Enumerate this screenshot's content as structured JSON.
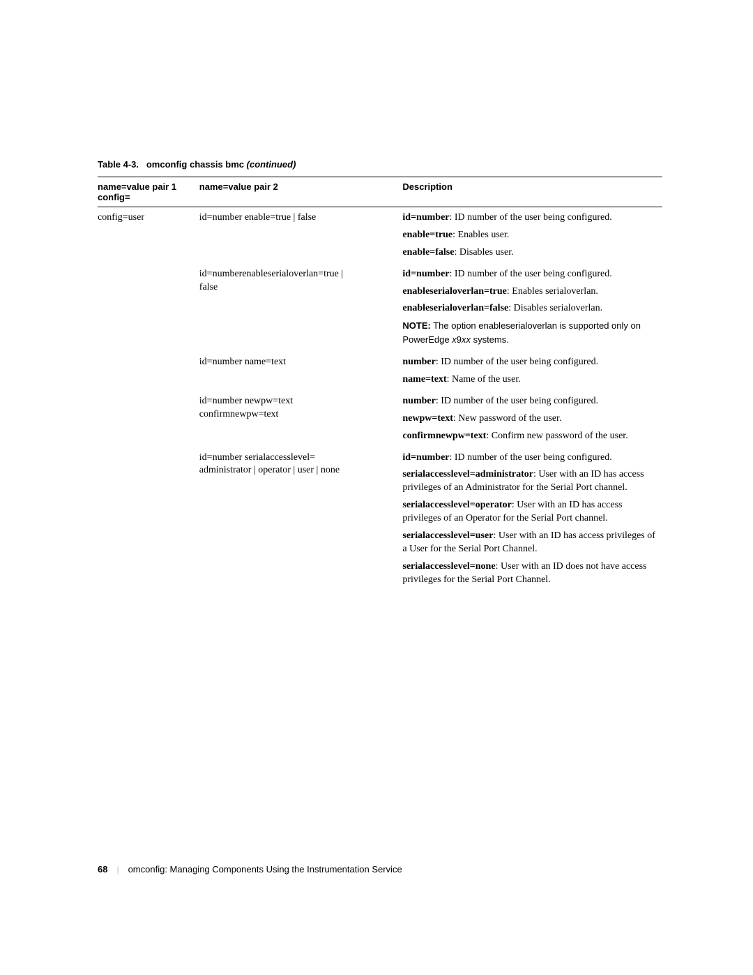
{
  "table": {
    "caption_prefix": "Table 4-3.",
    "caption_main": "omconfig chassis bmc",
    "caption_suffix": "(continued)",
    "h1_line1": "name=value pair 1",
    "h1_line2": "config=",
    "h2": "name=value pair 2",
    "h3": "Description",
    "rows": {
      "r1": {
        "c1": "config=user",
        "c2": "id=number enable=true | false",
        "c3a_bold": "id=number",
        "c3a_text": ": ID number of the user being configured.",
        "c3b_bold": "enable=true",
        "c3b_text": ": Enables user.",
        "c3c_bold": "enable=false",
        "c3c_text": ": Disables user."
      },
      "r2": {
        "c2a": "id=numberenableserialoverlan=true |",
        "c2b": "false",
        "c3a_bold": "id=number",
        "c3a_text": ": ID number of the user being configured.",
        "c3b_bold": "enableserialoverlan=true",
        "c3b_text": ": Enables serialoverlan.",
        "c3c_bold": "enableserialoverlan=false",
        "c3c_text": ": Disables serialoverlan.",
        "c3d_note": "NOTE:",
        "c3d_text1": " The option ",
        "c3d_bold2": "enableserialoverlan",
        "c3d_text2": " is supported only on PowerEdge ",
        "c3d_ital": "x",
        "c3d_text3": "9",
        "c3d_ital2": "xx",
        "c3d_text4": " systems."
      },
      "r3": {
        "c2": "id=number name=text",
        "c3a_bold": "number",
        "c3a_text": ": ID number of the user being configured.",
        "c3b_bold": "name=text",
        "c3b_text": ": Name of the user."
      },
      "r4": {
        "c2a": "id=number newpw=text",
        "c2b": "confirmnewpw=text",
        "c3a_bold": "number",
        "c3a_text": ": ID number of the user being configured.",
        "c3b_bold": "newpw=text",
        "c3b_text": ": New password of the user.",
        "c3c_bold": "confirmnewpw=text",
        "c3c_text": ": Confirm new password of the user."
      },
      "r5": {
        "c2a": "id=number serialaccesslevel=",
        "c2b": "administrator | operator | user | none",
        "c3a_bold": "id=number",
        "c3a_text": ": ID number of the user being configured.",
        "c3b_bold": "serialaccesslevel=administrator",
        "c3b_text": ": User with an ID has access privileges of an Administrator for the Serial Port channel.",
        "c3c_bold": "serialaccesslevel=operator",
        "c3c_text": ": User with an ID has access privileges of an Operator for the Serial Port channel.",
        "c3d_bold": "serialaccesslevel=user",
        "c3d_text": ": User with an ID has access privileges of a User for the Serial Port Channel.",
        "c3e_bold": "serialaccesslevel=none",
        "c3e_text": ": User with an ID does not have access privileges for the Serial Port Channel."
      }
    }
  },
  "footer": {
    "page_number": "68",
    "divider": "|",
    "title": "omconfig: Managing Components Using the Instrumentation Service"
  }
}
